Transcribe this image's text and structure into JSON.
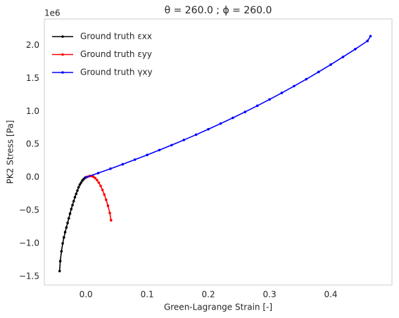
{
  "chart_data": {
    "type": "line",
    "title": "θ = 260.0 ; ϕ = 260.0",
    "xlabel": "Green-Lagrange Strain [-]",
    "ylabel": "PK2 Stress [Pa]",
    "y_offset_label": "1e6",
    "xlim": [
      -0.068,
      0.5
    ],
    "ylim": [
      -1630000,
      2400000
    ],
    "xticks": [
      {
        "value": 0,
        "label": "0.0"
      },
      0.1,
      0.2,
      0.3,
      0.4
    ],
    "yticks": [
      {
        "value": -1500000,
        "label": "−1.5"
      },
      {
        "value": -1000000,
        "label": "−1.0"
      },
      {
        "value": -500000,
        "label": "−0.5"
      },
      {
        "value": 0,
        "label": "0.0"
      },
      {
        "value": 500000,
        "label": "0.5"
      },
      {
        "value": 1000000,
        "label": "1.0"
      },
      {
        "value": 1500000,
        "label": "1.5"
      },
      {
        "value": 2000000,
        "label": "2.0"
      }
    ],
    "grid": false,
    "legend": "upper left",
    "series": [
      {
        "name": "Ground truth εxx",
        "color": "#000000",
        "x": [
          -0.043,
          -0.042,
          -0.04,
          -0.038,
          -0.036,
          -0.034,
          -0.032,
          -0.03,
          -0.028,
          -0.026,
          -0.024,
          -0.022,
          -0.02,
          -0.018,
          -0.016,
          -0.014,
          -0.012,
          -0.01,
          -0.008,
          -0.006,
          -0.004,
          -0.002,
          0
        ],
        "values": [
          -1420000,
          -1270000,
          -1120000,
          -1000000,
          -910000,
          -830000,
          -760000,
          -690000,
          -620000,
          -550000,
          -480000,
          -420000,
          -360000,
          -300000,
          -250000,
          -200000,
          -150000,
          -110000,
          -80000,
          -50000,
          -30000,
          -10000,
          0
        ]
      },
      {
        "name": "Ground truth εyy",
        "color": "#ff0000",
        "x": [
          0,
          0.003,
          0.006,
          0.009,
          0.012,
          0.015,
          0.018,
          0.021,
          0.024,
          0.027,
          0.03,
          0.033,
          0.036,
          0.039,
          0.041
        ],
        "values": [
          0,
          10000,
          20000,
          20000,
          10000,
          -10000,
          -40000,
          -80000,
          -130000,
          -190000,
          -260000,
          -340000,
          -430000,
          -540000,
          -650000
        ]
      },
      {
        "name": "Ground truth γxy",
        "color": "#0000ff",
        "x": [
          0,
          0.02,
          0.04,
          0.06,
          0.08,
          0.1,
          0.12,
          0.14,
          0.16,
          0.18,
          0.2,
          0.22,
          0.24,
          0.26,
          0.28,
          0.3,
          0.32,
          0.34,
          0.36,
          0.38,
          0.4,
          0.42,
          0.44,
          0.46,
          0.465
        ],
        "values": [
          0,
          65000,
          131000,
          199000,
          269000,
          340000,
          414000,
          489000,
          567000,
          647000,
          730000,
          815000,
          902000,
          992000,
          1085000,
          1181000,
          1280000,
          1383000,
          1488000,
          1597000,
          1709000,
          1825000,
          1944000,
          2067000,
          2140000
        ]
      }
    ]
  }
}
